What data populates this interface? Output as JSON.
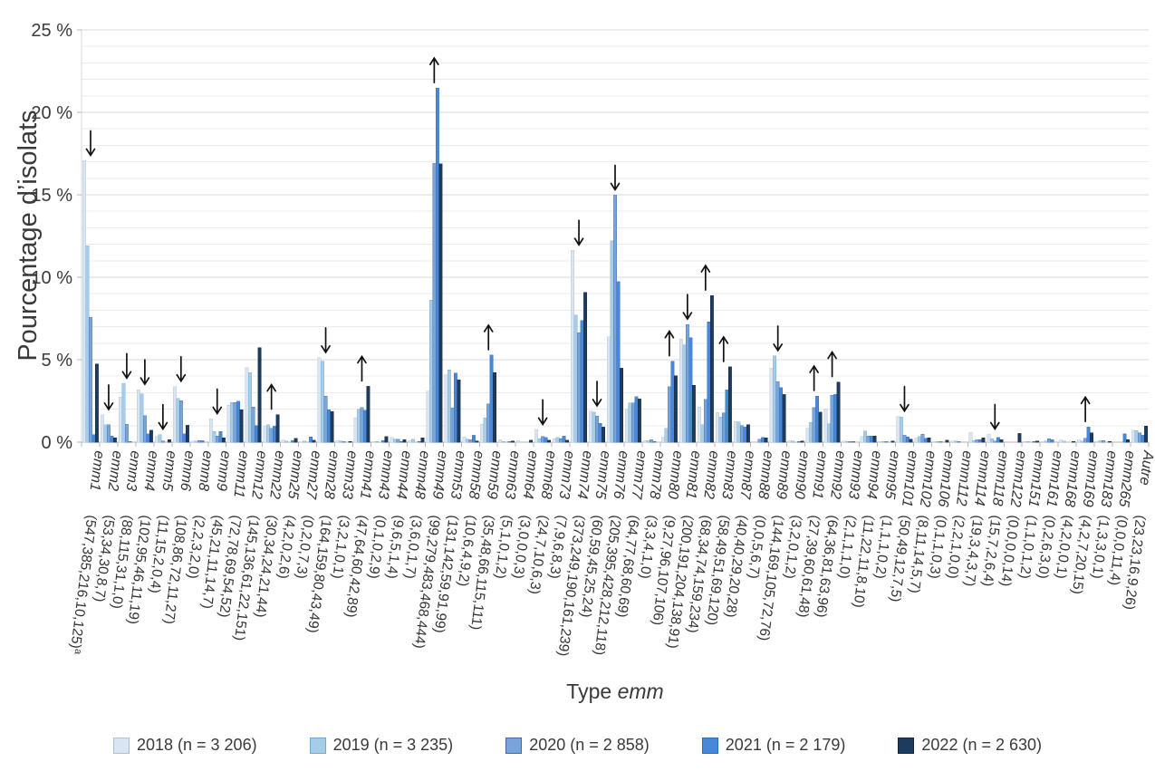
{
  "chart_data": {
    "type": "bar",
    "title": "",
    "ylabel": "Pourcentage d’isolats",
    "xlabel_parts": [
      "Type ",
      "emm"
    ],
    "ylim": [
      0,
      25
    ],
    "y_tick_step": 5,
    "y_minor_step": 1,
    "y_tick_suffix": " %",
    "grid": true,
    "legend_position": "bottom",
    "series": [
      {
        "label": "2018 (n = 3 206)",
        "n": 3206,
        "color": "#dbe5f1",
        "border": "#a9c1da"
      },
      {
        "label": "2019 (n = 3 235)",
        "n": 3235,
        "color": "#a6cde7",
        "border": "#74a9cf"
      },
      {
        "label": "2020 (n = 2 858)",
        "n": 2858,
        "color": "#7aa3d9",
        "border": "#3f6da8"
      },
      {
        "label": "2021 (n = 2 179)",
        "n": 2179,
        "color": "#4789d8",
        "border": "#2e6bb0"
      },
      {
        "label": "2022 (n = 2 630)",
        "n": 2630,
        "color": "#1d3a5f",
        "border": "#122740"
      }
    ],
    "categories": [
      {
        "label": "emm1",
        "counts": [
          547,
          385,
          216,
          10,
          125
        ],
        "trend": "down",
        "note": "a"
      },
      {
        "label": "emm2",
        "counts": [
          53,
          34,
          30,
          8,
          7
        ],
        "trend": "down"
      },
      {
        "label": "emm3",
        "counts": [
          88,
          115,
          31,
          1,
          0
        ],
        "trend": "down"
      },
      {
        "label": "emm4",
        "counts": [
          102,
          95,
          46,
          11,
          19
        ],
        "trend": "down"
      },
      {
        "label": "emm5",
        "counts": [
          11,
          15,
          2,
          0,
          4
        ],
        "trend": "down"
      },
      {
        "label": "emm6",
        "counts": [
          108,
          86,
          72,
          11,
          27
        ],
        "trend": "down"
      },
      {
        "label": "emm8",
        "counts": [
          2,
          2,
          3,
          2,
          0
        ],
        "trend": null
      },
      {
        "label": "emm9",
        "counts": [
          45,
          21,
          11,
          14,
          7
        ],
        "trend": "down"
      },
      {
        "label": "emm11",
        "counts": [
          72,
          78,
          69,
          54,
          52
        ],
        "trend": null
      },
      {
        "label": "emm12",
        "counts": [
          145,
          136,
          61,
          22,
          151
        ],
        "trend": null
      },
      {
        "label": "emm22",
        "counts": [
          30,
          34,
          24,
          21,
          44
        ],
        "trend": "up"
      },
      {
        "label": "emm25",
        "counts": [
          4,
          2,
          0,
          2,
          6
        ],
        "trend": null
      },
      {
        "label": "emm27",
        "counts": [
          0,
          2,
          0,
          7,
          3
        ],
        "trend": null
      },
      {
        "label": "emm28",
        "counts": [
          164,
          159,
          80,
          43,
          49
        ],
        "trend": "down"
      },
      {
        "label": "emm33",
        "counts": [
          3,
          2,
          1,
          0,
          1
        ],
        "trend": null
      },
      {
        "label": "emm41",
        "counts": [
          47,
          64,
          60,
          42,
          89
        ],
        "trend": "up"
      },
      {
        "label": "emm43",
        "counts": [
          0,
          1,
          0,
          2,
          9
        ],
        "trend": null
      },
      {
        "label": "emm44",
        "counts": [
          9,
          6,
          5,
          1,
          4
        ],
        "trend": null
      },
      {
        "label": "emm48",
        "counts": [
          3,
          6,
          0,
          1,
          7
        ],
        "trend": null
      },
      {
        "label": "emm49",
        "counts": [
          99,
          279,
          483,
          468,
          444
        ],
        "trend": "up"
      },
      {
        "label": "emm53",
        "counts": [
          131,
          142,
          59,
          91,
          99
        ],
        "trend": null
      },
      {
        "label": "emm58",
        "counts": [
          10,
          6,
          4,
          9,
          2
        ],
        "trend": null
      },
      {
        "label": "emm59",
        "counts": [
          35,
          48,
          66,
          115,
          111
        ],
        "trend": "up"
      },
      {
        "label": "emm63",
        "counts": [
          5,
          1,
          0,
          1,
          2
        ],
        "trend": null
      },
      {
        "label": "emm64",
        "counts": [
          3,
          0,
          0,
          0,
          3
        ],
        "trend": null
      },
      {
        "label": "emm68",
        "counts": [
          24,
          7,
          10,
          6,
          3
        ],
        "trend": "down"
      },
      {
        "label": "emm73",
        "counts": [
          7,
          9,
          6,
          8,
          3
        ],
        "trend": null
      },
      {
        "label": "emm74",
        "counts": [
          373,
          249,
          190,
          161,
          239
        ],
        "trend": "down"
      },
      {
        "label": "emm75",
        "counts": [
          60,
          59,
          45,
          25,
          24
        ],
        "trend": "down"
      },
      {
        "label": "emm76",
        "counts": [
          205,
          395,
          428,
          212,
          118
        ],
        "trend": "down"
      },
      {
        "label": "emm77",
        "counts": [
          64,
          77,
          68,
          60,
          69
        ],
        "trend": null
      },
      {
        "label": "emm78",
        "counts": [
          3,
          3,
          4,
          1,
          0
        ],
        "trend": null
      },
      {
        "label": "emm80",
        "counts": [
          9,
          27,
          96,
          107,
          106
        ],
        "trend": "up"
      },
      {
        "label": "emm81",
        "counts": [
          200,
          191,
          204,
          138,
          91
        ],
        "trend": "down"
      },
      {
        "label": "emm82",
        "counts": [
          68,
          34,
          74,
          159,
          234
        ],
        "trend": "up"
      },
      {
        "label": "emm83",
        "counts": [
          58,
          49,
          51,
          69,
          120
        ],
        "trend": "up"
      },
      {
        "label": "emm87",
        "counts": [
          40,
          40,
          29,
          20,
          28
        ],
        "trend": null
      },
      {
        "label": "emm88",
        "counts": [
          0,
          0,
          5,
          6,
          7
        ],
        "trend": null
      },
      {
        "label": "emm89",
        "counts": [
          144,
          169,
          105,
          72,
          76
        ],
        "trend": "down"
      },
      {
        "label": "emm90",
        "counts": [
          3,
          2,
          0,
          1,
          2
        ],
        "trend": null
      },
      {
        "label": "emm91",
        "counts": [
          27,
          39,
          60,
          61,
          48
        ],
        "trend": "up"
      },
      {
        "label": "emm92",
        "counts": [
          64,
          36,
          81,
          63,
          96
        ],
        "trend": "up"
      },
      {
        "label": "emm93",
        "counts": [
          2,
          1,
          1,
          1,
          0
        ],
        "trend": null
      },
      {
        "label": "emm94",
        "counts": [
          11,
          22,
          11,
          8,
          10
        ],
        "trend": null
      },
      {
        "label": "emm95",
        "counts": [
          1,
          1,
          1,
          0,
          2
        ],
        "trend": null
      },
      {
        "label": "emm101",
        "counts": [
          50,
          49,
          12,
          7,
          5
        ],
        "trend": "down"
      },
      {
        "label": "emm102",
        "counts": [
          8,
          11,
          14,
          5,
          7
        ],
        "trend": null
      },
      {
        "label": "emm106",
        "counts": [
          0,
          1,
          1,
          0,
          3
        ],
        "trend": null
      },
      {
        "label": "emm112",
        "counts": [
          2,
          2,
          1,
          0,
          0
        ],
        "trend": null
      },
      {
        "label": "emm114",
        "counts": [
          19,
          3,
          4,
          3,
          7
        ],
        "trend": null
      },
      {
        "label": "emm118",
        "counts": [
          15,
          7,
          2,
          6,
          4
        ],
        "trend": "down"
      },
      {
        "label": "emm122",
        "counts": [
          0,
          0,
          0,
          0,
          14
        ],
        "trend": null
      },
      {
        "label": "emm151",
        "counts": [
          1,
          1,
          0,
          1,
          2
        ],
        "trend": null
      },
      {
        "label": "emm161",
        "counts": [
          0,
          2,
          6,
          3,
          0
        ],
        "trend": null
      },
      {
        "label": "emm168",
        "counts": [
          4,
          2,
          0,
          0,
          1
        ],
        "trend": null
      },
      {
        "label": "emm169",
        "counts": [
          4,
          2,
          7,
          20,
          15
        ],
        "trend": "up"
      },
      {
        "label": "emm183",
        "counts": [
          1,
          3,
          3,
          0,
          1
        ],
        "trend": null
      },
      {
        "label": "emm265",
        "counts": [
          0,
          0,
          0,
          11,
          4
        ],
        "trend": null
      },
      {
        "label": "Autre",
        "counts": [
          23,
          23,
          16,
          9,
          26
        ],
        "trend": null
      }
    ]
  }
}
